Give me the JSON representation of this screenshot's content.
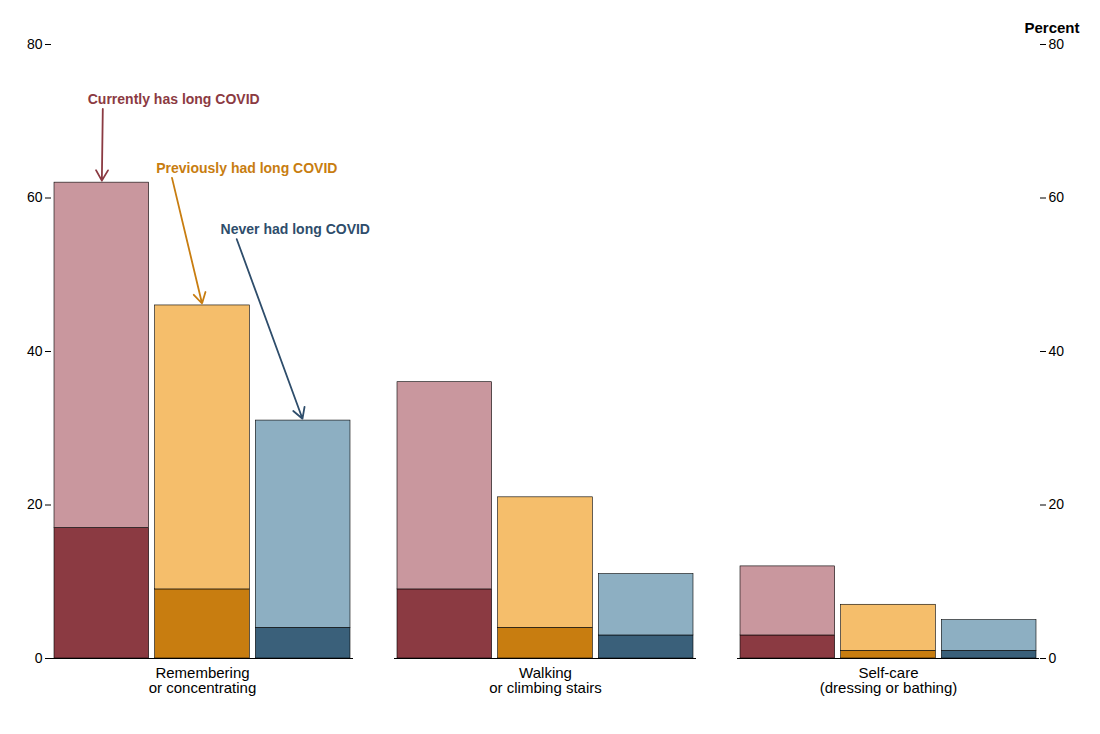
{
  "chart_data": {
    "type": "bar",
    "stacked": true,
    "categories": [
      "Remembering\nor concentrating",
      "Walking\nor climbing stairs",
      "Self-care\n(dressing or bathing)"
    ],
    "series": [
      {
        "name": "Currently has long COVID",
        "segments": [
          {
            "color": "#8B3A42",
            "values": [
              17,
              9,
              3
            ]
          },
          {
            "color": "#c9979e",
            "values": [
              45,
              27,
              9
            ]
          }
        ]
      },
      {
        "name": "Previously had long COVID",
        "segments": [
          {
            "color": "#c87d10",
            "values": [
              9,
              4,
              1
            ]
          },
          {
            "color": "#f5be6b",
            "values": [
              37,
              17,
              6
            ]
          }
        ]
      },
      {
        "name": "Never had long COVID",
        "segments": [
          {
            "color": "#3a607a",
            "values": [
              4,
              3,
              1
            ]
          },
          {
            "color": "#8dafc2",
            "values": [
              27,
              8,
              4
            ]
          }
        ]
      }
    ],
    "annotations": [
      {
        "text": "Currently has long COVID",
        "color": "#8B3A42",
        "series": "Currently has long COVID",
        "category": "Remembering\nor concentrating"
      },
      {
        "text": "Previously had long COVID",
        "color": "#c87d10",
        "series": "Previously had long COVID",
        "category": "Remembering\nor concentrating"
      },
      {
        "text": "Never had long COVID",
        "color": "#2e4d6b",
        "series": "Never had long COVID",
        "category": "Remembering\nor concentrating"
      }
    ],
    "ylabel": "Percent",
    "ylim": [
      0,
      80
    ],
    "yticks": [
      0,
      20,
      40,
      60,
      80
    ],
    "y2lim": [
      0,
      80
    ],
    "y2ticks": [
      0,
      20,
      40,
      60,
      80
    ],
    "grid": false
  }
}
